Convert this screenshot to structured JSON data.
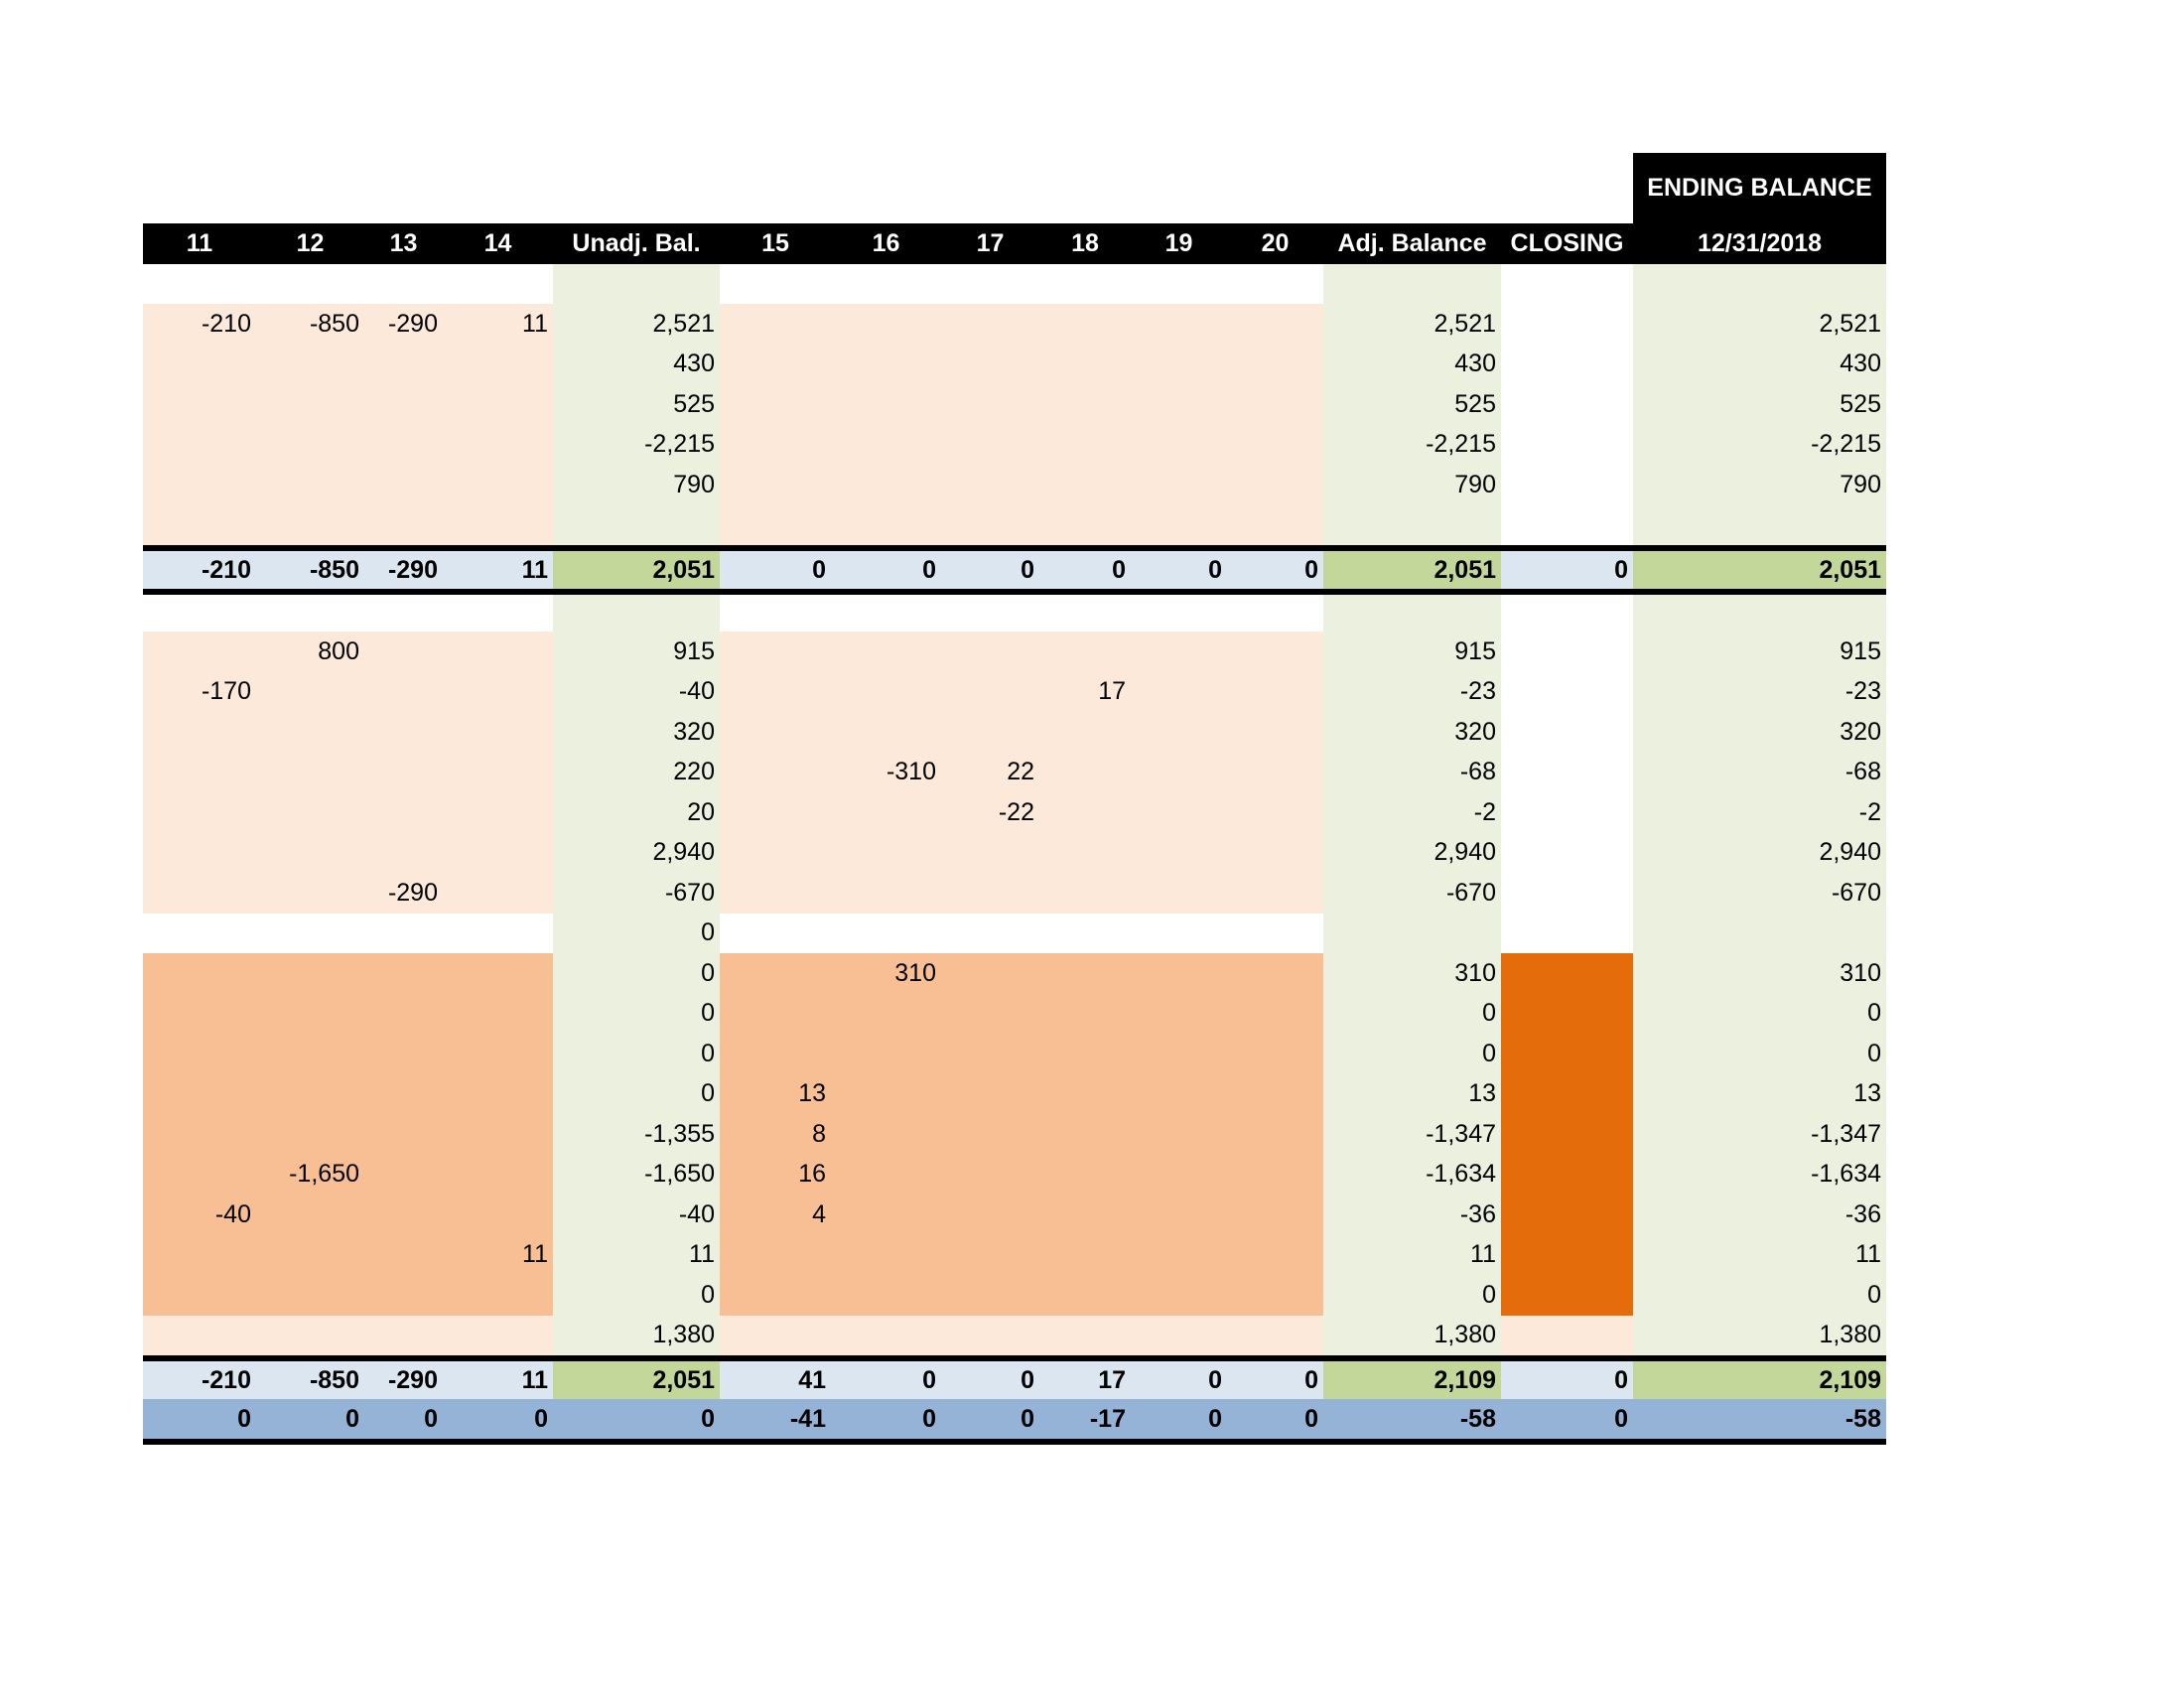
{
  "header": {
    "ending_balance_title": "ENDING BALANCE",
    "columns": [
      "11",
      "12",
      "13",
      "14",
      "Unadj. Bal.",
      "15",
      "16",
      "17",
      "18",
      "19",
      "20",
      "Adj. Balance",
      "CLOSING",
      "12/31/2018"
    ]
  },
  "colors": {
    "header_bg": "#000000",
    "peach": "#fde9d9",
    "orange_light": "#f8bf94",
    "closing_orange": "#e46c0a",
    "balance_green": "#ebf1de",
    "total_green": "#c4d79b",
    "total_blue": "#dce6f1",
    "difference_blue": "#95b3d7"
  },
  "rows": [
    {
      "band": "blank",
      "cells": [
        "",
        "",
        "",
        "",
        "",
        "",
        "",
        "",
        "",
        "",
        "",
        "",
        "",
        ""
      ]
    },
    {
      "band": "peach",
      "cells": [
        "-210",
        "-850",
        "-290",
        "11",
        "2,521",
        "",
        "",
        "",
        "",
        "",
        "",
        "2,521",
        "",
        "2,521"
      ]
    },
    {
      "band": "peach",
      "cells": [
        "",
        "",
        "",
        "",
        "430",
        "",
        "",
        "",
        "",
        "",
        "",
        "430",
        "",
        "430"
      ]
    },
    {
      "band": "peach",
      "cells": [
        "",
        "",
        "",
        "",
        "525",
        "",
        "",
        "",
        "",
        "",
        "",
        "525",
        "",
        "525"
      ]
    },
    {
      "band": "peach",
      "cells": [
        "",
        "",
        "",
        "",
        "-2,215",
        "",
        "",
        "",
        "",
        "",
        "",
        "-2,215",
        "",
        "-2,215"
      ]
    },
    {
      "band": "peach",
      "cells": [
        "",
        "",
        "",
        "",
        "790",
        "",
        "",
        "",
        "",
        "",
        "",
        "790",
        "",
        "790"
      ]
    },
    {
      "band": "peach",
      "cells": [
        "",
        "",
        "",
        "",
        "",
        "",
        "",
        "",
        "",
        "",
        "",
        "",
        "",
        ""
      ]
    },
    {
      "band": "sep",
      "cells": []
    },
    {
      "band": "total",
      "cells": [
        "-210",
        "-850",
        "-290",
        "11",
        "2,051",
        "0",
        "0",
        "0",
        "0",
        "0",
        "0",
        "2,051",
        "0",
        "2,051"
      ]
    },
    {
      "band": "sep",
      "cells": []
    },
    {
      "band": "blank2",
      "cells": [
        "",
        "",
        "",
        "",
        "",
        "",
        "",
        "",
        "",
        "",
        "",
        "",
        "",
        ""
      ]
    },
    {
      "band": "peach",
      "cells": [
        "",
        "800",
        "",
        "",
        "915",
        "",
        "",
        "",
        "",
        "",
        "",
        "915",
        "",
        "915"
      ]
    },
    {
      "band": "peach",
      "cells": [
        "-170",
        "",
        "",
        "",
        "-40",
        "",
        "",
        "",
        "17",
        "",
        "",
        "-23",
        "",
        "-23"
      ]
    },
    {
      "band": "peach",
      "cells": [
        "",
        "",
        "",
        "",
        "320",
        "",
        "",
        "",
        "",
        "",
        "",
        "320",
        "",
        "320"
      ]
    },
    {
      "band": "peach",
      "cells": [
        "",
        "",
        "",
        "",
        "220",
        "",
        "-310",
        "22",
        "",
        "",
        "",
        "-68",
        "",
        "-68"
      ]
    },
    {
      "band": "peach",
      "cells": [
        "",
        "",
        "",
        "",
        "20",
        "",
        "",
        "-22",
        "",
        "",
        "",
        "-2",
        "",
        "-2"
      ]
    },
    {
      "band": "peach",
      "cells": [
        "",
        "",
        "",
        "",
        "2,940",
        "",
        "",
        "",
        "",
        "",
        "",
        "2,940",
        "",
        "2,940"
      ]
    },
    {
      "band": "peach",
      "cells": [
        "",
        "",
        "-290",
        "",
        "-670",
        "",
        "",
        "",
        "",
        "",
        "",
        "-670",
        "",
        "-670"
      ]
    },
    {
      "band": "white",
      "cells": [
        "",
        "",
        "",
        "",
        "0",
        "",
        "",
        "",
        "",
        "",
        "",
        "",
        "",
        ""
      ]
    },
    {
      "band": "orange",
      "cells": [
        "",
        "",
        "",
        "",
        "0",
        "",
        "310",
        "",
        "",
        "",
        "",
        "310",
        "",
        "310"
      ]
    },
    {
      "band": "orange",
      "cells": [
        "",
        "",
        "",
        "",
        "0",
        "",
        "",
        "",
        "",
        "",
        "",
        "0",
        "",
        "0"
      ]
    },
    {
      "band": "orange",
      "cells": [
        "",
        "",
        "",
        "",
        "0",
        "",
        "",
        "",
        "",
        "",
        "",
        "0",
        "",
        "0"
      ]
    },
    {
      "band": "orange",
      "cells": [
        "",
        "",
        "",
        "",
        "0",
        "13",
        "",
        "",
        "",
        "",
        "",
        "13",
        "",
        "13"
      ]
    },
    {
      "band": "orange",
      "cells": [
        "",
        "",
        "",
        "",
        "-1,355",
        "8",
        "",
        "",
        "",
        "",
        "",
        "-1,347",
        "",
        "-1,347"
      ]
    },
    {
      "band": "orange",
      "cells": [
        "",
        "-1,650",
        "",
        "",
        "-1,650",
        "16",
        "",
        "",
        "",
        "",
        "",
        "-1,634",
        "",
        "-1,634"
      ]
    },
    {
      "band": "orange",
      "cells": [
        "-40",
        "",
        "",
        "",
        "-40",
        "4",
        "",
        "",
        "",
        "",
        "",
        "-36",
        "",
        "-36"
      ]
    },
    {
      "band": "orange",
      "cells": [
        "",
        "",
        "",
        "11",
        "11",
        "",
        "",
        "",
        "",
        "",
        "",
        "11",
        "",
        "11"
      ]
    },
    {
      "band": "orange",
      "cells": [
        "",
        "",
        "",
        "",
        "0",
        "",
        "",
        "",
        "",
        "",
        "",
        "0",
        "",
        "0"
      ]
    },
    {
      "band": "lite",
      "cells": [
        "",
        "",
        "",
        "",
        "1,380",
        "",
        "",
        "",
        "",
        "",
        "",
        "1,380",
        "",
        "1,380"
      ]
    },
    {
      "band": "sep",
      "cells": []
    },
    {
      "band": "total",
      "cells": [
        "-210",
        "-850",
        "-290",
        "11",
        "2,051",
        "41",
        "0",
        "0",
        "17",
        "0",
        "0",
        "2,109",
        "0",
        "2,109"
      ]
    },
    {
      "band": "diff",
      "cells": [
        "0",
        "0",
        "0",
        "0",
        "0",
        "-41",
        "0",
        "0",
        "-17",
        "0",
        "0",
        "-58",
        "0",
        "-58"
      ]
    },
    {
      "band": "sep",
      "cells": []
    }
  ]
}
